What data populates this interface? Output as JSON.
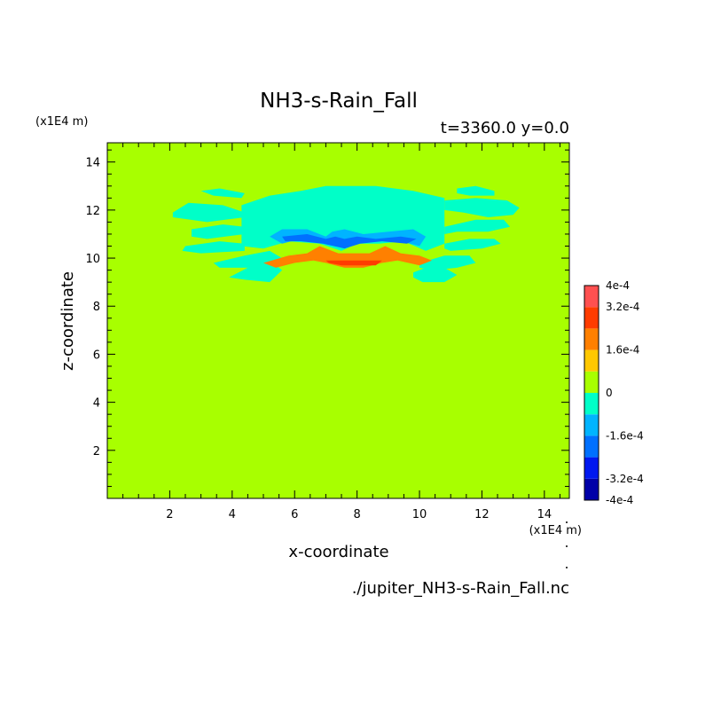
{
  "chart_data": {
    "type": "heatmap",
    "title": "NH3-s-Rain_Fall",
    "subtitle": "t=3360.0 y=0.0",
    "xlabel": "x-coordinate",
    "ylabel": "z-coordinate",
    "x_unit": "(x1E4 m)",
    "z_unit": "(x1E4 m)",
    "source_file": "./jupiter_NH3-s-Rain_Fall.nc",
    "xlim": [
      0,
      14.8
    ],
    "zlim": [
      0,
      14.8
    ],
    "x_ticks": [
      2,
      4,
      6,
      8,
      10,
      12,
      14
    ],
    "z_ticks": [
      2,
      4,
      6,
      8,
      10,
      12,
      14
    ],
    "background_level": 0,
    "colorbar": {
      "levels": [
        -0.0004,
        -0.00032,
        -0.00024,
        -0.00016,
        -8e-05,
        0,
        8e-05,
        0.00016,
        0.00024,
        0.00032,
        0.0004
      ],
      "colors": [
        "#0000a8",
        "#0018f0",
        "#0070ff",
        "#00b4ff",
        "#00ffc8",
        "#a8ff00",
        "#ffc800",
        "#ff8000",
        "#ff3c00",
        "#ff5050"
      ],
      "tick_labels": [
        "-4e-4",
        "-3.2e-4",
        "-1.6e-4",
        "0",
        "1.6e-4",
        "3.2e-4",
        "4e-4"
      ]
    },
    "regions": [
      {
        "level": -8e-05,
        "x": [
          4.3,
          4.3,
          5.2,
          6.2,
          7.0,
          8.6,
          9.8,
          10.8,
          10.8,
          10.2,
          9.5,
          8.7,
          8.0,
          7.5,
          6.8,
          5.8,
          5.0
        ],
        "z": [
          10.5,
          12.2,
          12.6,
          12.8,
          13.0,
          13.0,
          12.8,
          12.5,
          10.6,
          10.3,
          10.7,
          10.6,
          10.6,
          10.3,
          10.6,
          10.7,
          10.4
        ]
      },
      {
        "level": -8e-05,
        "x": [
          2.1,
          2.6,
          3.7,
          4.4,
          4.4,
          3.2,
          2.1
        ],
        "z": [
          11.9,
          12.3,
          12.2,
          11.9,
          11.7,
          11.5,
          11.7
        ]
      },
      {
        "level": -8e-05,
        "x": [
          2.7,
          3.7,
          4.4,
          4.4,
          3.2,
          2.7
        ],
        "z": [
          11.2,
          11.4,
          11.3,
          11.0,
          10.8,
          10.9
        ]
      },
      {
        "level": -8e-05,
        "x": [
          2.5,
          3.6,
          4.4,
          4.4,
          3.0,
          2.4
        ],
        "z": [
          10.5,
          10.7,
          10.6,
          10.3,
          10.2,
          10.3
        ]
      },
      {
        "level": -8e-05,
        "x": [
          3.4,
          4.4,
          5.2,
          5.6,
          5.2,
          4.4,
          3.6
        ],
        "z": [
          9.8,
          10.1,
          10.3,
          10.0,
          9.6,
          9.6,
          9.6
        ]
      },
      {
        "level": -8e-05,
        "x": [
          3.9,
          4.5,
          5.3,
          5.6,
          5.2,
          4.4
        ],
        "z": [
          9.2,
          9.6,
          9.8,
          9.5,
          9.0,
          9.1
        ]
      },
      {
        "level": -8e-05,
        "x": [
          3.0,
          3.6,
          4.4,
          4.3,
          3.4
        ],
        "z": [
          12.8,
          12.9,
          12.7,
          12.5,
          12.6
        ]
      },
      {
        "level": -8e-05,
        "x": [
          10.8,
          11.8,
          12.8,
          13.2,
          13.0,
          12.2,
          11.4,
          10.8
        ],
        "z": [
          12.4,
          12.5,
          12.4,
          12.1,
          11.8,
          11.7,
          11.9,
          12.0
        ]
      },
      {
        "level": -8e-05,
        "x": [
          10.8,
          11.8,
          12.7,
          12.9,
          12.2,
          11.2,
          10.8
        ],
        "z": [
          11.3,
          11.6,
          11.6,
          11.3,
          11.1,
          11.1,
          11.0
        ]
      },
      {
        "level": -8e-05,
        "x": [
          10.8,
          11.6,
          12.4,
          12.6,
          12.0,
          11.0,
          10.8
        ],
        "z": [
          10.6,
          10.8,
          10.8,
          10.6,
          10.4,
          10.3,
          10.4
        ]
      },
      {
        "level": -8e-05,
        "x": [
          10.0,
          10.8,
          11.6,
          11.8,
          11.2,
          10.4,
          10.0
        ],
        "z": [
          9.8,
          10.1,
          10.1,
          9.8,
          9.6,
          9.5,
          9.6
        ]
      },
      {
        "level": -8e-05,
        "x": [
          9.8,
          10.4,
          10.8,
          11.2,
          10.8,
          10.1,
          9.8
        ],
        "z": [
          9.4,
          9.7,
          9.6,
          9.3,
          9.0,
          9.0,
          9.2
        ]
      },
      {
        "level": -8e-05,
        "x": [
          11.2,
          11.8,
          12.4,
          12.4,
          11.6,
          11.2
        ],
        "z": [
          12.9,
          13.0,
          12.8,
          12.6,
          12.6,
          12.7
        ]
      },
      {
        "level": -0.00016,
        "x": [
          5.2,
          5.6,
          6.4,
          7.0,
          7.2,
          7.6,
          8.2,
          9.0,
          9.8,
          10.2,
          10.0,
          9.4,
          8.7,
          8.0,
          7.6,
          7.0,
          6.2,
          5.6
        ],
        "z": [
          10.9,
          11.2,
          11.2,
          10.9,
          11.1,
          11.2,
          11.0,
          11.1,
          11.2,
          10.9,
          10.5,
          10.7,
          10.8,
          10.7,
          10.4,
          10.7,
          10.8,
          10.6
        ]
      },
      {
        "level": -0.00024,
        "x": [
          5.6,
          6.4,
          7.0,
          7.3,
          7.6,
          8.0,
          8.6,
          9.4,
          9.9,
          9.6,
          8.8,
          8.1,
          7.6,
          6.9,
          6.2,
          5.7
        ],
        "z": [
          10.9,
          11.0,
          10.8,
          10.9,
          10.8,
          10.9,
          10.8,
          10.9,
          10.8,
          10.6,
          10.7,
          10.6,
          10.4,
          10.6,
          10.7,
          10.7
        ]
      },
      {
        "level": 0.00016,
        "x": [
          5.0,
          5.8,
          6.4,
          6.8,
          7.4,
          7.8,
          8.4,
          8.9,
          9.4,
          10.0,
          10.4,
          10.0,
          9.3,
          8.8,
          8.2,
          7.6,
          7.0,
          6.6,
          6.0,
          5.4
        ],
        "z": [
          9.8,
          10.1,
          10.2,
          10.5,
          10.2,
          10.2,
          10.2,
          10.5,
          10.2,
          10.1,
          9.9,
          9.7,
          9.9,
          9.8,
          9.6,
          9.6,
          9.8,
          9.9,
          9.8,
          9.6
        ]
      },
      {
        "level": 0.00024,
        "x": [
          7.0,
          7.6,
          8.2,
          8.8,
          8.6,
          8.0,
          7.5,
          7.1
        ],
        "z": [
          9.9,
          9.9,
          9.9,
          9.9,
          9.7,
          9.7,
          9.7,
          9.8
        ]
      }
    ]
  }
}
